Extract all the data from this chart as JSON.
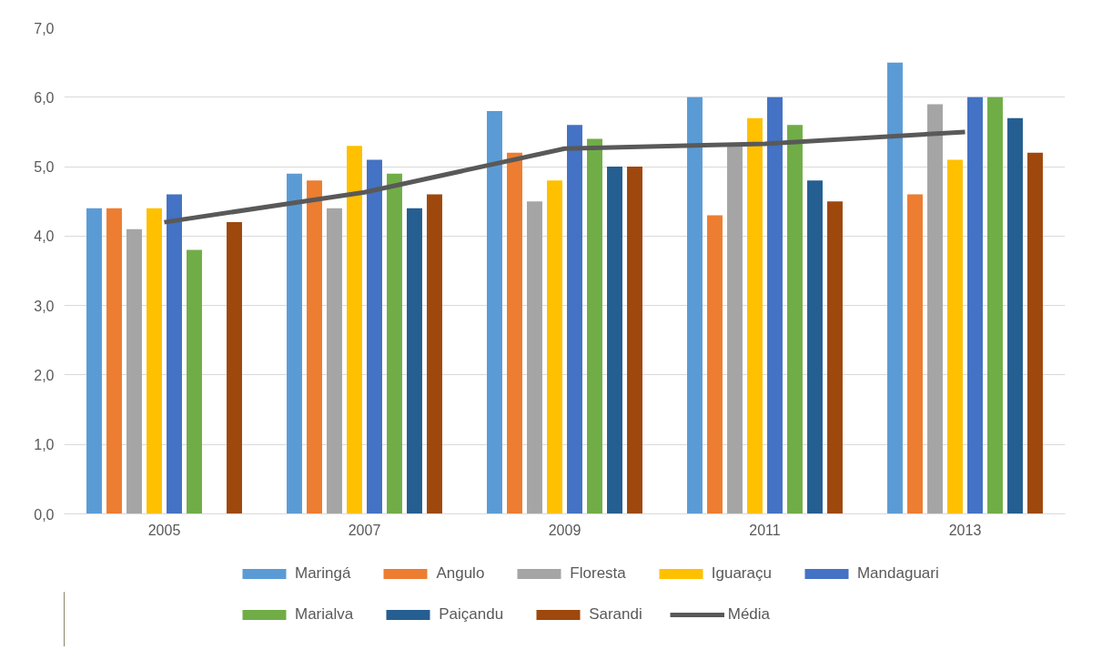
{
  "chart_data": {
    "type": "bar",
    "categories": [
      "2005",
      "2007",
      "2009",
      "2011",
      "2013"
    ],
    "series": [
      {
        "name": "Maringá",
        "color": "#5b9bd5",
        "values": [
          4.4,
          4.9,
          5.8,
          6.0,
          6.5
        ]
      },
      {
        "name": "Angulo",
        "color": "#ed7d31",
        "values": [
          4.4,
          4.8,
          5.2,
          4.3,
          4.6
        ]
      },
      {
        "name": "Floresta",
        "color": "#a5a5a5",
        "values": [
          4.1,
          4.4,
          4.5,
          5.3,
          5.9
        ]
      },
      {
        "name": "Iguaraçu",
        "color": "#ffc000",
        "values": [
          4.4,
          5.3,
          4.8,
          5.7,
          5.1
        ]
      },
      {
        "name": "Mandaguari",
        "color": "#4472c4",
        "values": [
          4.6,
          5.1,
          5.6,
          6.0,
          6.0
        ]
      },
      {
        "name": "Marialva",
        "color": "#70ad47",
        "values": [
          3.8,
          4.9,
          5.4,
          5.6,
          6.0
        ]
      },
      {
        "name": "Paiçandu",
        "color": "#255e91",
        "values": [
          null,
          4.4,
          5.0,
          4.8,
          5.7
        ]
      },
      {
        "name": "Sarandi",
        "color": "#9e480e",
        "values": [
          4.2,
          4.6,
          5.0,
          4.5,
          5.2
        ]
      },
      {
        "name": "Média",
        "color": "#595959",
        "type": "line",
        "values": [
          4.2,
          4.63,
          5.26,
          5.33,
          5.5
        ]
      }
    ],
    "ylim": [
      0,
      7
    ],
    "yticks": [
      {
        "value": 0,
        "label": "0,0"
      },
      {
        "value": 1,
        "label": "1,0"
      },
      {
        "value": 2,
        "label": "2,0"
      },
      {
        "value": 3,
        "label": "3,0"
      },
      {
        "value": 4,
        "label": "4,0"
      },
      {
        "value": 5,
        "label": "5,0"
      },
      {
        "value": 6,
        "label": "6,0"
      },
      {
        "value": 7,
        "label": "7,0"
      }
    ],
    "grid": "y",
    "legend": "bottom",
    "marker": "none",
    "line_style": "solid"
  }
}
